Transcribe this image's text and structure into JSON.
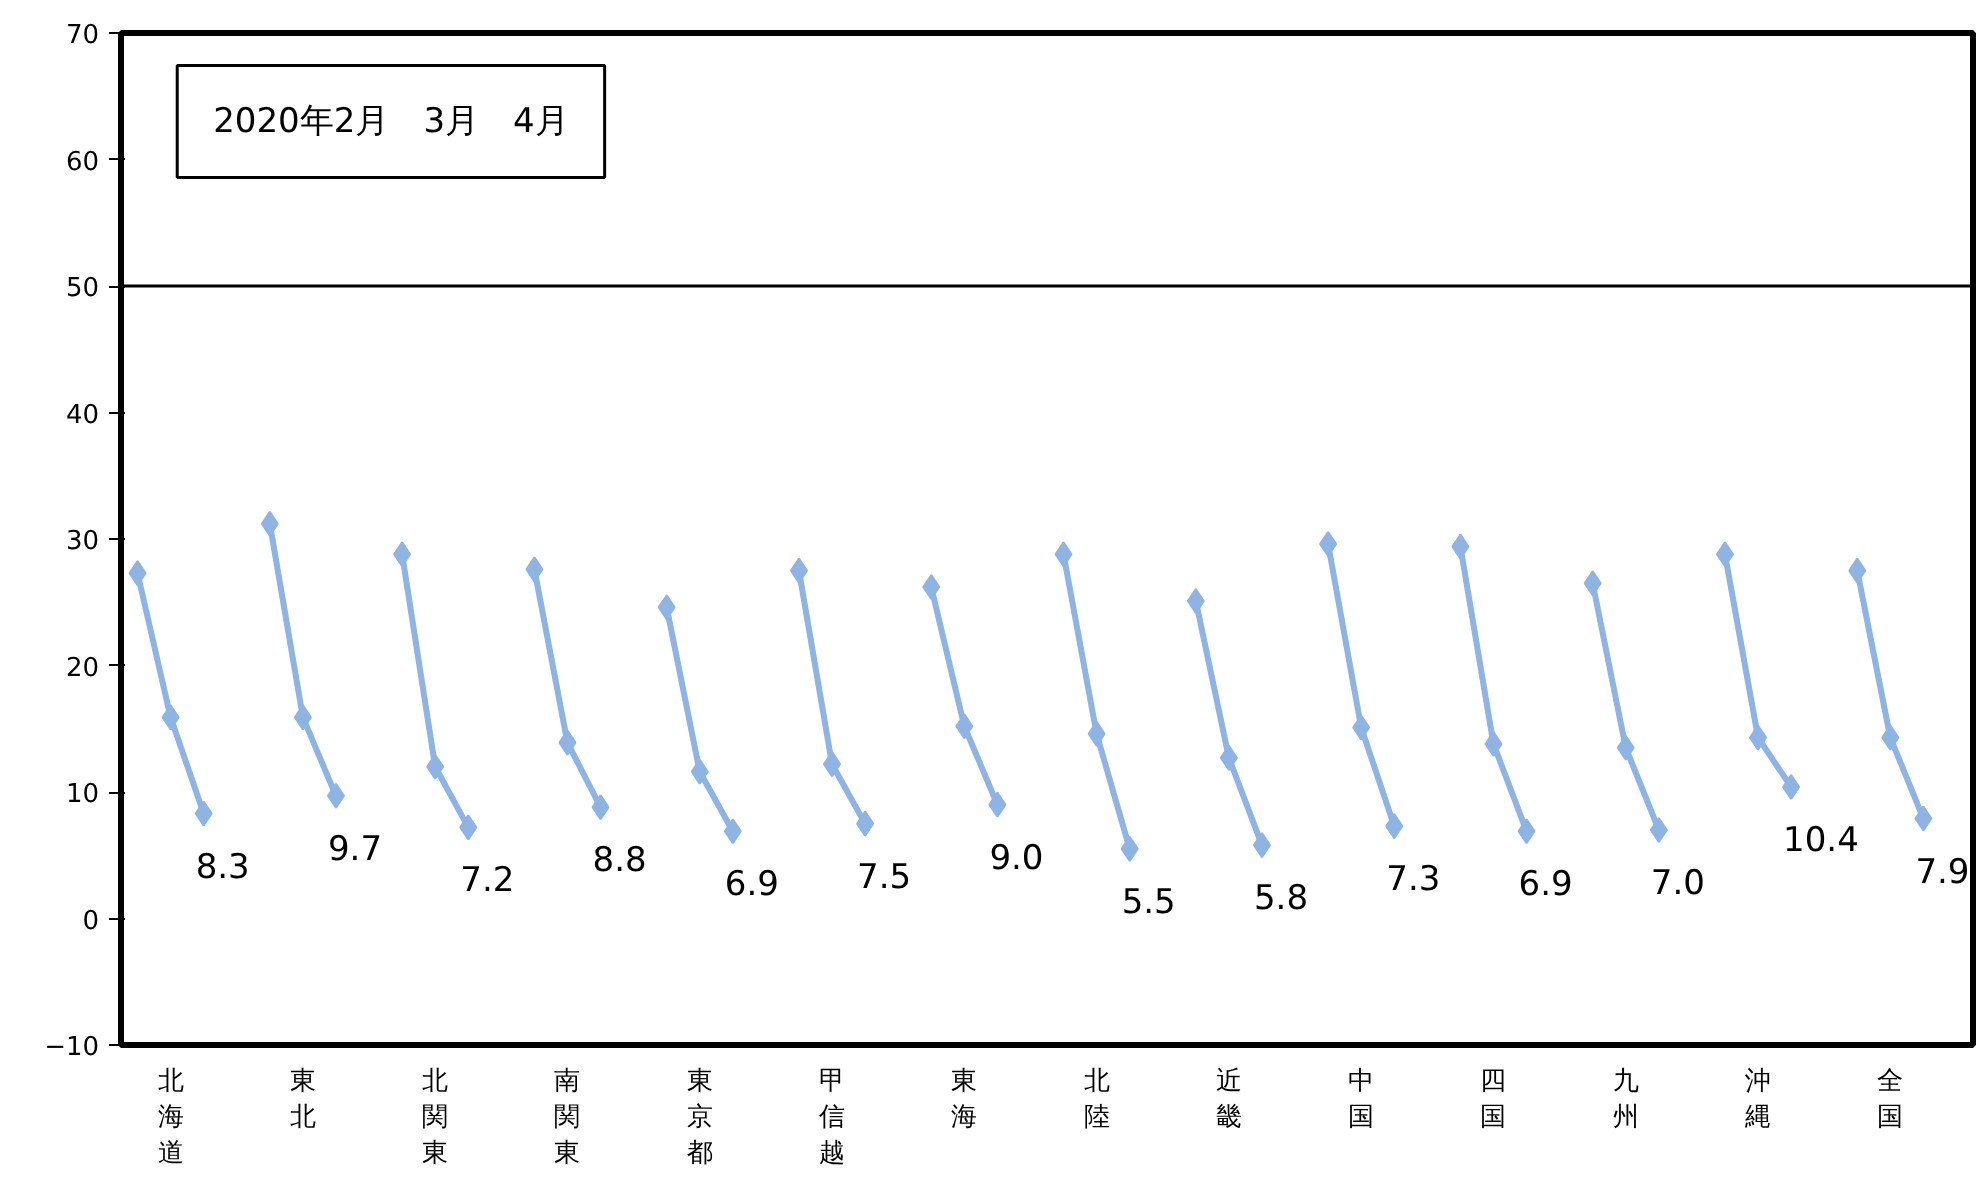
{
  "chart_data": {
    "type": "line",
    "categories": [
      null,
      "北海道",
      null,
      null,
      null,
      "東北",
      null,
      null,
      null,
      "北関東",
      null,
      null,
      null,
      "南関東",
      null,
      null,
      null,
      "東京都",
      null,
      null,
      null,
      "甲信越",
      null,
      null,
      null,
      "東海",
      null,
      null,
      null,
      "北陸",
      null,
      null,
      null,
      "近畿",
      null,
      null,
      null,
      "中国",
      null,
      null,
      null,
      "四国",
      null,
      null,
      null,
      "九州",
      null,
      null,
      null,
      "沖縄",
      null,
      null,
      null,
      "全国",
      null,
      null
    ],
    "series": [
      {
        "color": "#8eb4e3",
        "values": [
          27.3,
          15.9,
          8.3,
          null,
          31.2,
          15.9,
          9.7,
          null,
          28.8,
          12.0,
          7.2,
          null,
          27.6,
          13.9,
          8.8,
          null,
          24.6,
          11.6,
          6.9,
          null,
          27.5,
          12.2,
          7.5,
          null,
          26.2,
          15.2,
          9.0,
          null,
          28.8,
          14.6,
          5.5,
          null,
          25.1,
          12.7,
          5.8,
          null,
          29.6,
          15.1,
          7.3,
          null,
          29.4,
          13.8,
          6.9,
          null,
          26.5,
          13.5,
          7.0,
          null,
          28.8,
          14.3,
          10.4,
          null,
          27.5,
          14.3,
          7.9,
          null
        ],
        "value_labels": [
          null,
          null,
          "8.3",
          null,
          null,
          null,
          "9.7",
          null,
          null,
          null,
          "7.2",
          null,
          null,
          null,
          "8.8",
          null,
          null,
          null,
          "6.9",
          null,
          null,
          null,
          "7.5",
          null,
          null,
          null,
          "9.0",
          null,
          null,
          null,
          "5.5",
          null,
          null,
          null,
          "5.8",
          null,
          null,
          null,
          "7.3",
          null,
          null,
          null,
          "6.9",
          null,
          null,
          null,
          "7.0",
          null,
          null,
          null,
          "10.4",
          null,
          null,
          null,
          "7.9",
          null
        ]
      }
    ],
    "ylim": [
      -10,
      70
    ],
    "yticks": [
      -10,
      0,
      10,
      20,
      30,
      40,
      50,
      60,
      70
    ],
    "grid": false,
    "marker": "diamond",
    "line_style": "solid",
    "ref_lines": [
      {
        "axis": "y",
        "value": 50,
        "color": "#000000"
      }
    ],
    "annotations": [
      "2020年2月　3月　4月"
    ]
  }
}
